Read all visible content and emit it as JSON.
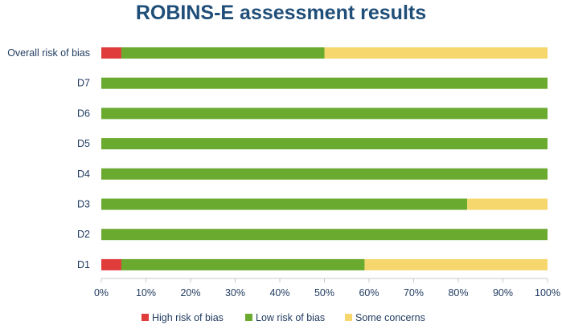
{
  "chart_data": {
    "type": "bar",
    "orientation": "horizontal",
    "stacked": true,
    "title": "ROBINS-E assessment results",
    "categories": [
      "Overall risk of bias",
      "D7",
      "D6",
      "D5",
      "D4",
      "D3",
      "D2",
      "D1"
    ],
    "series": [
      {
        "name": "High risk of bias",
        "color": "#e03c3c",
        "values": [
          4.5,
          0,
          0,
          0,
          0,
          0,
          0,
          4.5
        ]
      },
      {
        "name": "Low risk of bias",
        "color": "#6aaa2e",
        "values": [
          45.5,
          100,
          100,
          100,
          100,
          82,
          100,
          54.5
        ]
      },
      {
        "name": "Some concerns",
        "color": "#f5d76e",
        "values": [
          50,
          0,
          0,
          0,
          0,
          18,
          0,
          41
        ]
      }
    ],
    "x_ticks": [
      "0%",
      "10%",
      "20%",
      "30%",
      "40%",
      "50%",
      "60%",
      "70%",
      "80%",
      "90%",
      "100%"
    ],
    "xlim": [
      0,
      100
    ],
    "grid": false,
    "legend_position": "bottom"
  }
}
